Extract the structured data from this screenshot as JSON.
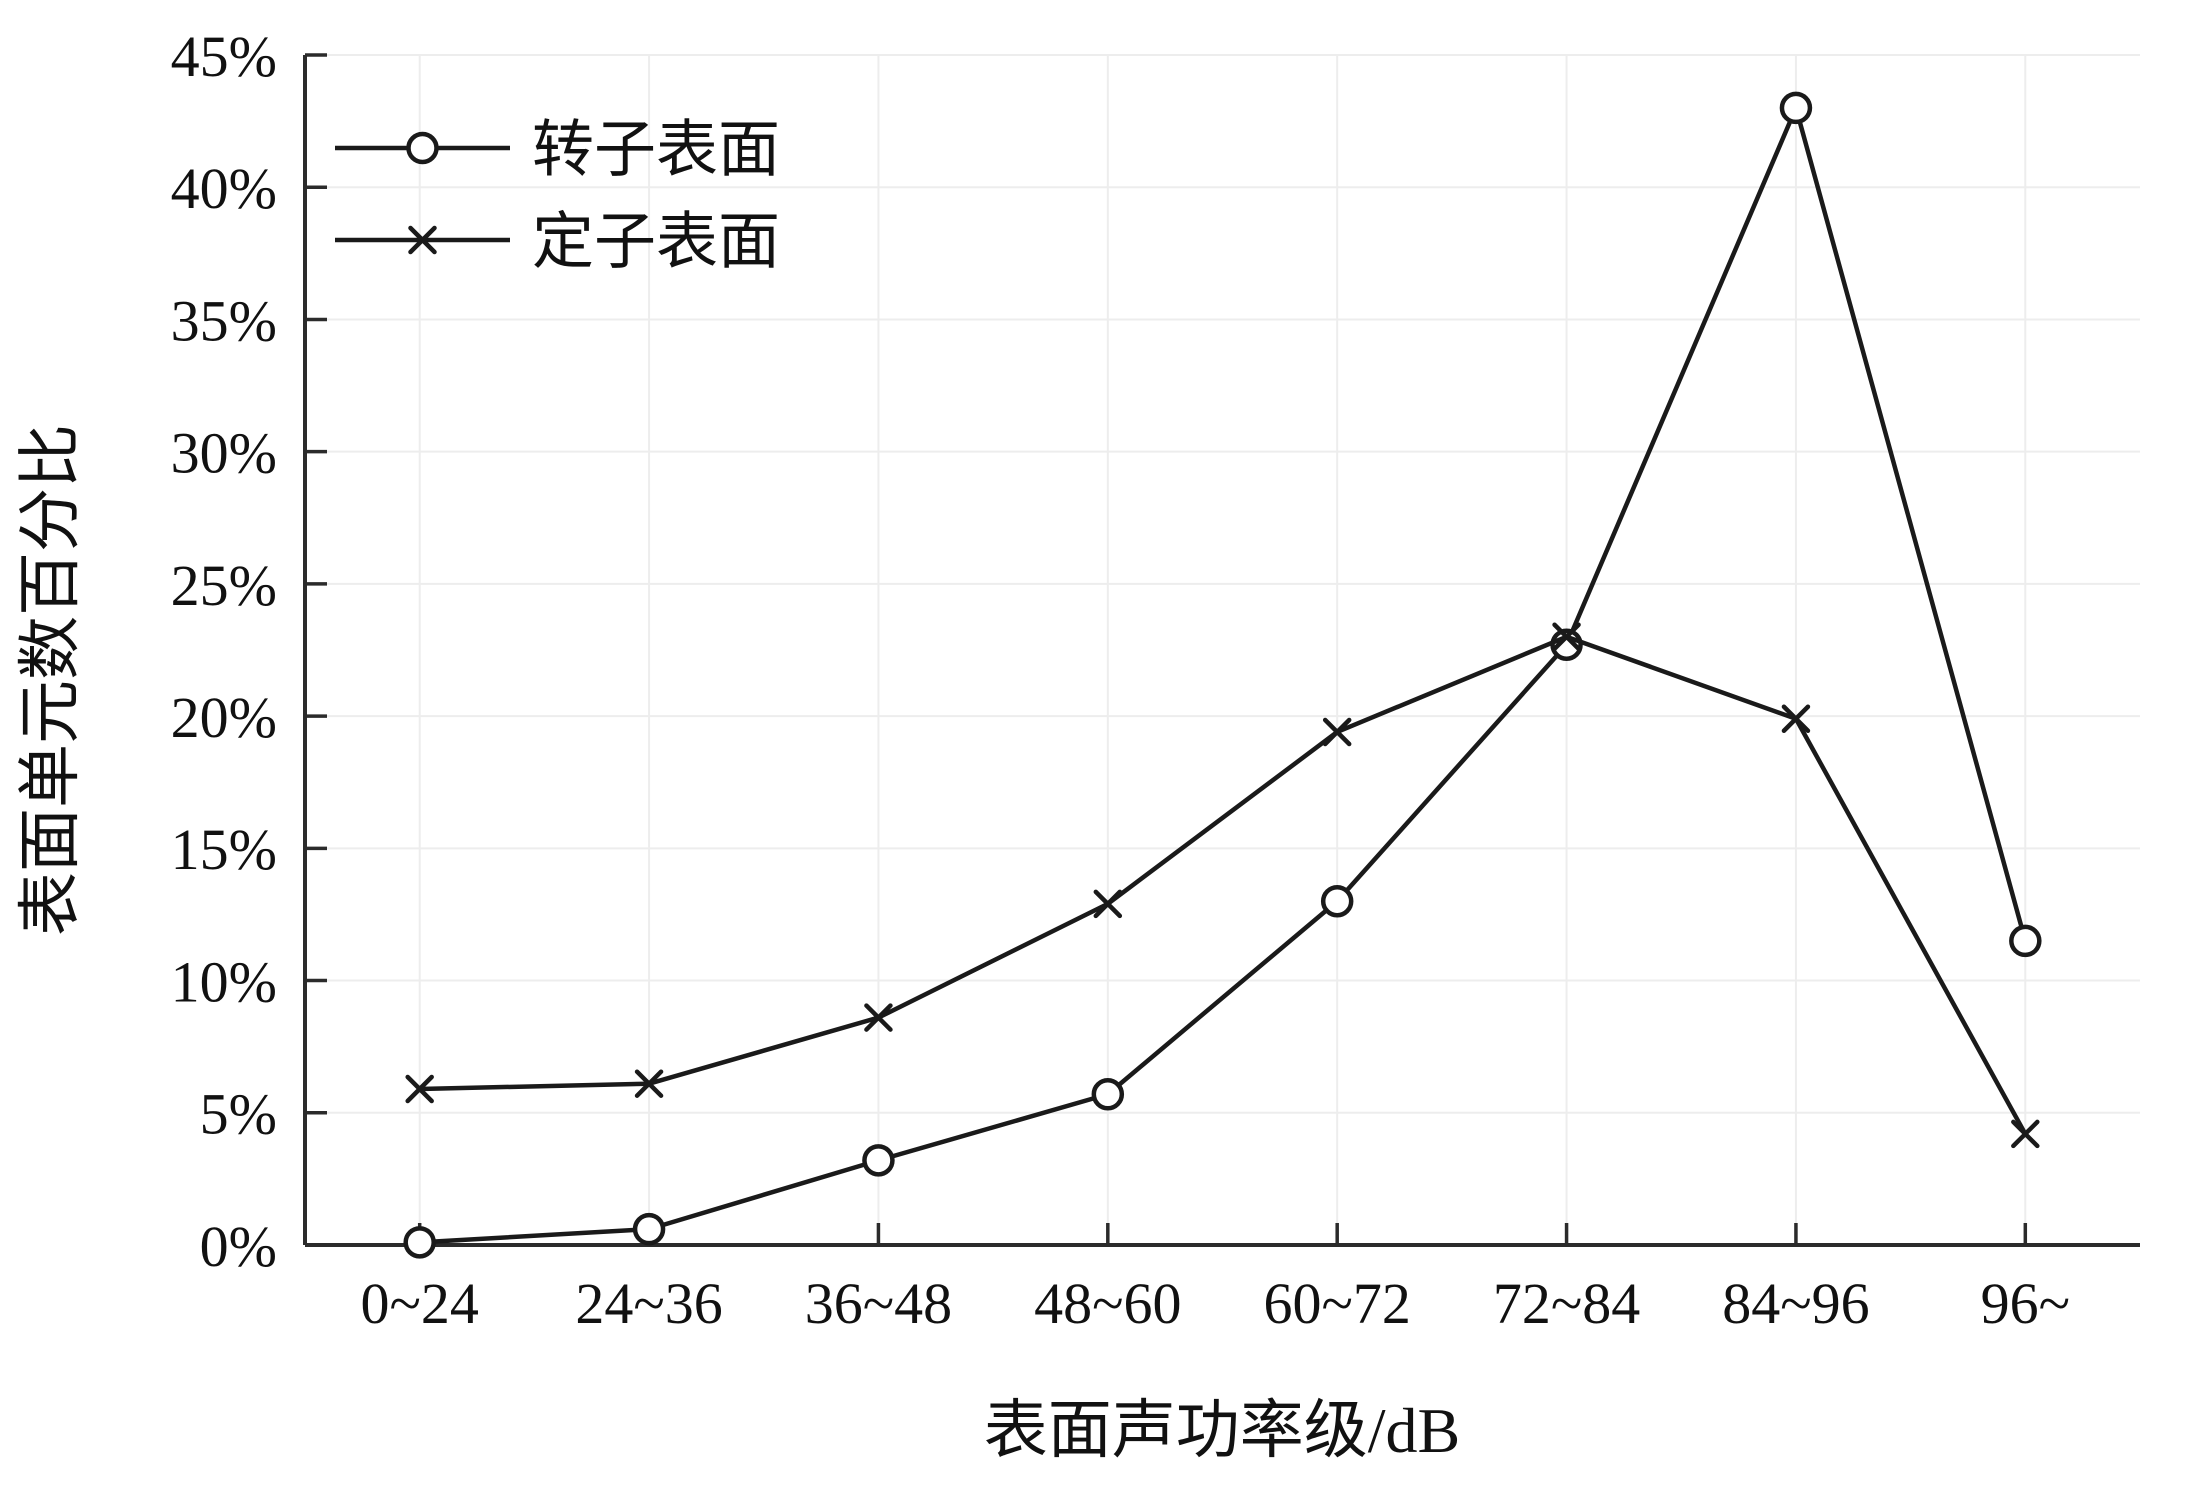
{
  "chart_data": {
    "type": "line",
    "title": "",
    "xlabel": "表面声功率级/dB",
    "ylabel": "表面单元数百分比",
    "categories": [
      "0~24",
      "24~36",
      "36~48",
      "48~60",
      "60~72",
      "72~84",
      "84~96",
      "96~"
    ],
    "series": [
      {
        "name": "转子表面",
        "marker": "circle",
        "values": [
          0.1,
          0.6,
          3.2,
          5.7,
          13.0,
          22.7,
          43.0,
          11.5
        ]
      },
      {
        "name": "定子表面",
        "marker": "x",
        "values": [
          5.9,
          6.1,
          8.6,
          12.9,
          19.4,
          23.0,
          19.9,
          4.2
        ]
      }
    ],
    "ylim": [
      0,
      45
    ],
    "ytick_step": 5,
    "ytick_suffix": "%",
    "grid": true,
    "legend_position": "top-left",
    "colors": {
      "line": "#1a1a1a",
      "axis": "#2b2b2b",
      "grid": "#ededed",
      "background": "#ffffff"
    }
  }
}
